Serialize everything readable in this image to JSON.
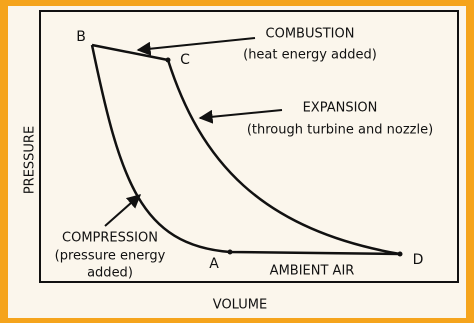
{
  "axes": {
    "x_label": "VOLUME",
    "y_label": "PRESSURE"
  },
  "points": [
    {
      "label": "B"
    },
    {
      "label": "C"
    },
    {
      "label": "A"
    },
    {
      "label": "D"
    }
  ],
  "annotations": {
    "combustion": {
      "title": "COMBUSTION",
      "detail": "(heat energy added)"
    },
    "expansion": {
      "title": "EXPANSION",
      "detail": "(through turbine and nozzle)"
    },
    "compression": {
      "title": "COMPRESSION",
      "detail_1": "(pressure energy",
      "detail_2": "added)"
    },
    "ambient": {
      "title": "AMBIENT AIR"
    }
  }
}
